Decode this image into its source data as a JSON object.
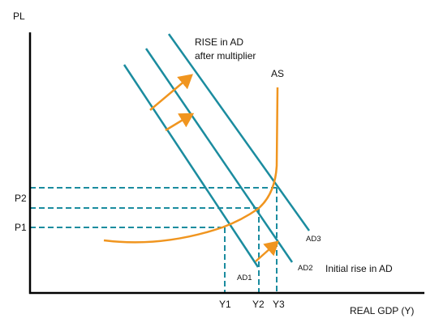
{
  "colors": {
    "axis": "#000000",
    "ad_lines": "#1b8c9f",
    "as_curve": "#f0951f",
    "arrows": "#f0951f",
    "guides": "#1b8c9f",
    "text": "#111111"
  },
  "axes": {
    "y_label": "PL",
    "x_label": "REAL GDP (Y)"
  },
  "price_ticks": [
    "P2",
    "P1"
  ],
  "output_ticks": [
    "Y1",
    "Y2",
    "Y3"
  ],
  "curves": {
    "as_label": "AS",
    "ad1_label": "AD1",
    "ad2_label": "AD2",
    "ad3_label": "AD3"
  },
  "annotations": {
    "multiplier_line1": "RISE in AD",
    "multiplier_line2": "after multiplier",
    "initial_rise": "Initial rise in AD"
  }
}
